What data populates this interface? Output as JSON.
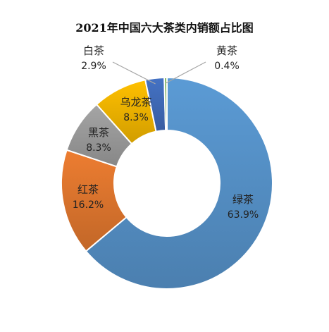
{
  "chart_data": {
    "type": "pie",
    "title": "2021年中国六大茶类内销额占比图",
    "xlabel": "",
    "ylabel": "",
    "legend": "none",
    "unit": "%",
    "categories": [
      "绿茶",
      "红茶",
      "黑茶",
      "乌龙茶",
      "白茶",
      "黄茶"
    ],
    "values": [
      63.9,
      16.2,
      8.3,
      8.3,
      2.9,
      0.4
    ],
    "value_labels": [
      "63.9%",
      "16.2%",
      "8.3%",
      "8.3%",
      "2.9%",
      "0.4%"
    ],
    "colors": [
      "#5B9BD5",
      "#ED7D31",
      "#A5A5A5",
      "#FFC000",
      "#4472C4",
      "#70AD47"
    ]
  }
}
